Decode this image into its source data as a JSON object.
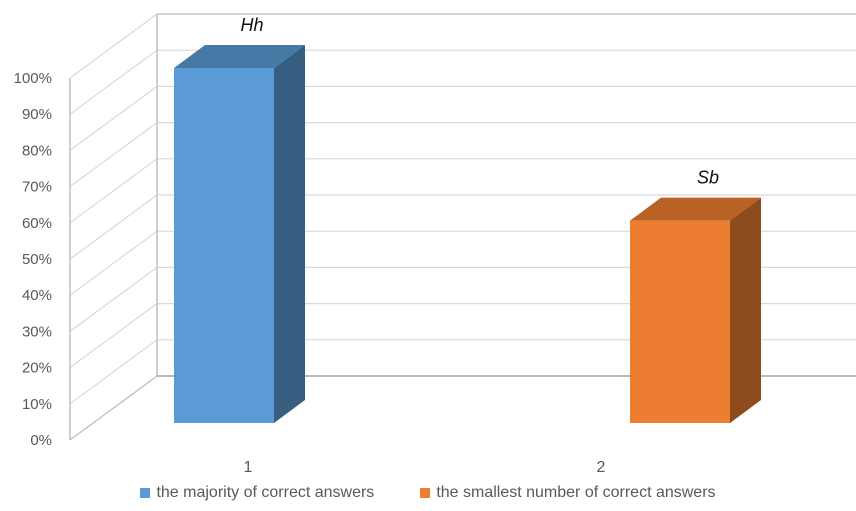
{
  "chart_data": {
    "type": "bar",
    "categories": [
      "1",
      "2"
    ],
    "series": [
      {
        "name": "the majority of correct answers",
        "category": "1",
        "value": 100,
        "label": "Hh",
        "color": "#5b9bd5"
      },
      {
        "name": "the smallest number of correct answers",
        "category": "2",
        "value": 57,
        "label": "Sb",
        "color": "#ed7d31"
      }
    ],
    "y_ticks": [
      "0%",
      "10%",
      "20%",
      "30%",
      "40%",
      "50%",
      "60%",
      "70%",
      "80%",
      "90%",
      "100%"
    ],
    "ylim": [
      0,
      100
    ],
    "grid": true,
    "legend_position": "bottom",
    "style": "3d-clustered-column"
  }
}
